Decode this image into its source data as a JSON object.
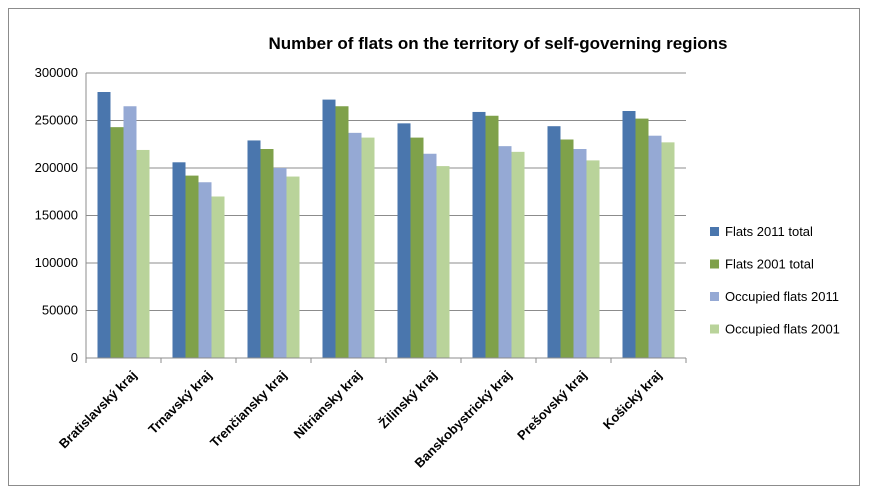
{
  "chart_data": {
    "type": "bar",
    "title": "Number of flats on the territory of self-governing regions",
    "xlabel": "",
    "ylabel": "",
    "ylim": [
      0,
      300000
    ],
    "yticks": [
      "0",
      "50000",
      "100000",
      "150000",
      "200000",
      "250000",
      "300000"
    ],
    "grid": true,
    "legend_position": "right",
    "categories": [
      "Bratislavský kraj",
      "Trnavský kraj",
      "Trenčiansky kraj",
      "Nitriansky kraj",
      "Žilinský kraj",
      "Banskobystrický kraj",
      "Prešovský kraj",
      "Košický kraj"
    ],
    "series": [
      {
        "name": "Flats 2011 total",
        "color": "#4a76ad",
        "values": [
          280000,
          206000,
          229000,
          272000,
          247000,
          259000,
          244000,
          260000
        ]
      },
      {
        "name": "Flats 2001 total",
        "color": "#7fa14a",
        "values": [
          243000,
          192000,
          220000,
          265000,
          232000,
          255000,
          230000,
          252000
        ]
      },
      {
        "name": "Occupied flats 2011",
        "color": "#95a9d4",
        "values": [
          265000,
          185000,
          200000,
          237000,
          215000,
          223000,
          220000,
          234000
        ]
      },
      {
        "name": "Occupied flats 2001",
        "color": "#b9d39a",
        "values": [
          219000,
          170000,
          191000,
          232000,
          202000,
          217000,
          208000,
          227000
        ]
      }
    ]
  }
}
